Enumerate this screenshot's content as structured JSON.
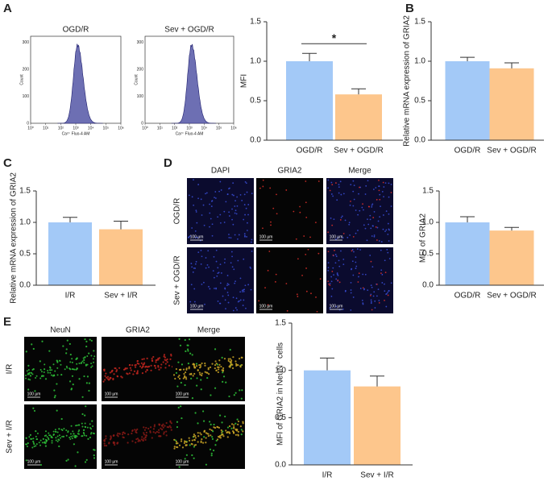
{
  "panel_labels": [
    "A",
    "B",
    "C",
    "D",
    "E"
  ],
  "flow": {
    "titles": [
      "OGD/R",
      "Sev + OGD/R"
    ],
    "y_label": "Count",
    "x_label": "Ca²⁺ Fluo-4 AM",
    "y_tick_labels": [
      "0",
      "100",
      "200",
      "300"
    ],
    "x_tick_labels": [
      "10⁰",
      "10¹",
      "10²",
      "10³",
      "10⁴",
      "10⁵",
      "10⁶"
    ]
  },
  "microscopy": [
    {
      "columns": [
        "DAPI",
        "GRIA2",
        "Merge"
      ],
      "rows": [
        "OGD/R",
        "Sev + OGD/R"
      ],
      "scale_bar": "100 μm"
    },
    {
      "columns": [
        "NeuN",
        "GRIA2",
        "Merge"
      ],
      "rows": [
        "I/R",
        "Sev + I/R"
      ],
      "scale_bar": "100 μm"
    }
  ],
  "chart_data": [
    {
      "type": "bar",
      "y_label": "MFI",
      "categories": [
        "OGD/R",
        "Sev + OGD/R"
      ],
      "values": [
        1.0,
        0.58
      ],
      "errors": [
        0.1,
        0.07
      ],
      "colors": [
        "#a3c9f7",
        "#fdc68c"
      ],
      "ylim": [
        0,
        1.5
      ],
      "yticks": [
        {
          "value": 0,
          "label": "0.0"
        },
        0.5,
        {
          "value": 1,
          "label": "1.0"
        },
        1.5
      ],
      "significance": "*"
    },
    {
      "type": "bar",
      "y_label": "Relative mRNA expression of GRIA2",
      "categories": [
        "OGD/R",
        "Sev + OGD/R"
      ],
      "values": [
        1.0,
        0.91
      ],
      "errors": [
        0.05,
        0.07
      ],
      "colors": [
        "#a3c9f7",
        "#fdc68c"
      ],
      "ylim": [
        0,
        1.5
      ],
      "yticks": [
        {
          "value": 0,
          "label": "0.0"
        },
        0.5,
        {
          "value": 1,
          "label": "1.0"
        },
        1.5
      ]
    },
    {
      "type": "bar",
      "y_label": "Relative mRNA expression of GRIA2",
      "categories": [
        "I/R",
        "Sev + I/R"
      ],
      "values": [
        1.0,
        0.89
      ],
      "errors": [
        0.08,
        0.13
      ],
      "colors": [
        "#a3c9f7",
        "#fdc68c"
      ],
      "ylim": [
        0,
        1.5
      ],
      "yticks": [
        {
          "value": 0,
          "label": "0.0"
        },
        0.5,
        {
          "value": 1,
          "label": "1.0"
        },
        1.5
      ]
    },
    {
      "type": "bar",
      "y_label": "MFI of GRIA2",
      "categories": [
        "OGD/R",
        "Sev + OGD/R"
      ],
      "values": [
        1.0,
        0.87
      ],
      "errors": [
        0.09,
        0.05
      ],
      "colors": [
        "#a3c9f7",
        "#fdc68c"
      ],
      "ylim": [
        0,
        1.5
      ],
      "yticks": [
        {
          "value": 0,
          "label": "0.0"
        },
        0.5,
        {
          "value": 1,
          "label": "1.0"
        },
        1.5
      ]
    },
    {
      "type": "bar",
      "y_label": "MFI of GRIA2 in NeuN⁺ cells",
      "categories": [
        "I/R",
        "Sev + I/R"
      ],
      "values": [
        1.0,
        0.83
      ],
      "errors": [
        0.13,
        0.11
      ],
      "colors": [
        "#a3c9f7",
        "#fdc68c"
      ],
      "ylim": [
        0,
        1.5
      ],
      "yticks": [
        {
          "value": 0,
          "label": "0.0"
        },
        0.5,
        {
          "value": 1,
          "label": "1.0"
        },
        1.5
      ]
    }
  ]
}
